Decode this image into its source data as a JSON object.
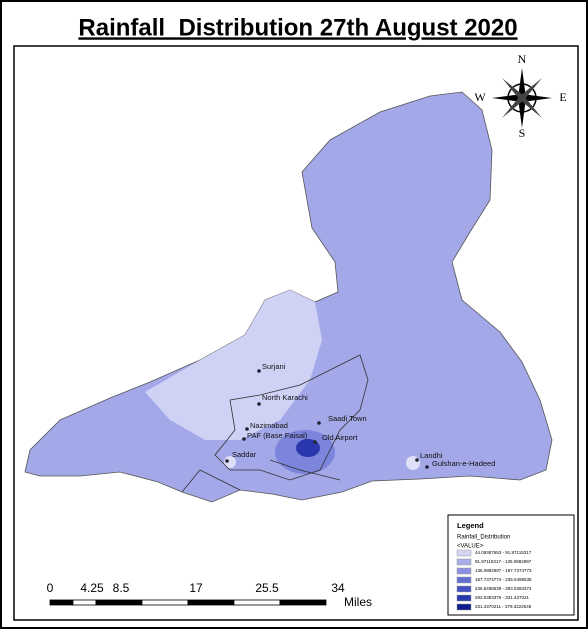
{
  "title": "Rainfall_Distribution 27th August 2020",
  "compass": {
    "n": "N",
    "e": "E",
    "s": "S",
    "w": "W"
  },
  "places": [
    "Surjani",
    "North Karachi",
    "Nazimabad",
    "PAF (Base Faisal)",
    "Saadi Town",
    "Old Airport",
    "Saddar",
    "Landhi",
    "Gulshan-e-Hadeed"
  ],
  "legend": {
    "title": "Legend",
    "layer": "Rainfall_Distribution",
    "field": "<VALUE>",
    "classes": [
      {
        "label": "44.09387653 - 91.97115317",
        "color": "#d4d6f6"
      },
      {
        "label": "91.97115317 - 135.0882997",
        "color": "#a9ade9"
      },
      {
        "label": "135.0882997 - 187.7374773",
        "color": "#8c92e0"
      },
      {
        "label": "187.7374774 - 235.6498538",
        "color": "#6670d2"
      },
      {
        "label": "235.6498539 - 283.5383374",
        "color": "#4450c2"
      },
      {
        "label": "283.5383375 - 331.437021",
        "color": "#2a37ad"
      },
      {
        "label": "331.4370211 - 379.3222546",
        "color": "#0d1c8f"
      }
    ]
  },
  "scale_bar": {
    "labels": [
      "0",
      "4.25",
      "8.5",
      "17",
      "25.5",
      "34"
    ],
    "unit": "Miles"
  }
}
